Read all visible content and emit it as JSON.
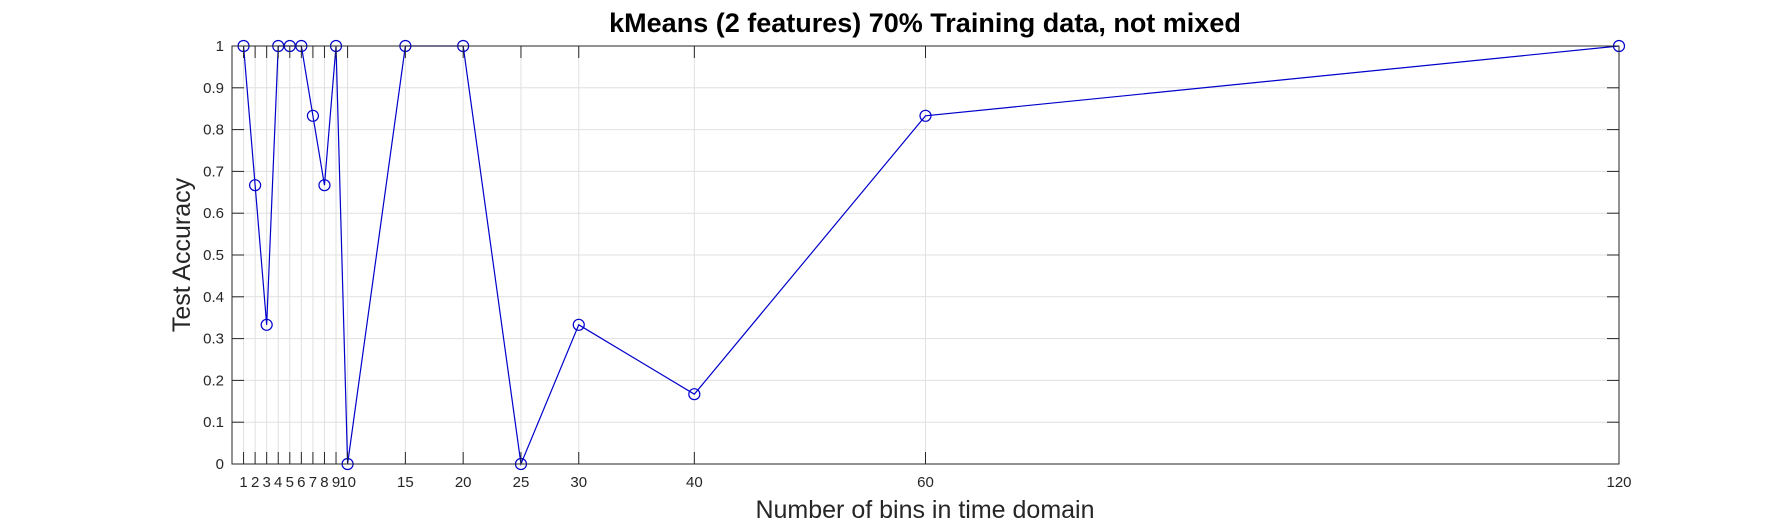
{
  "chart_data": {
    "type": "line",
    "title": "kMeans (2 features) 70% Training data, not mixed",
    "xlabel": "Number of bins in time domain",
    "ylabel": "Test Accuracy",
    "x": [
      1,
      2,
      3,
      4,
      5,
      6,
      7,
      8,
      9,
      10,
      15,
      20,
      25,
      30,
      40,
      60,
      120
    ],
    "series": [
      {
        "values": [
          1,
          0.667,
          0.333,
          1,
          1,
          1,
          0.833,
          0.667,
          1,
          0,
          1,
          1,
          0,
          0.333,
          0.167,
          0.833,
          1
        ]
      }
    ],
    "xlim": [
      0,
      120
    ],
    "ylim": [
      0,
      1
    ],
    "xticks": [
      1,
      2,
      3,
      4,
      5,
      6,
      7,
      8,
      9,
      10,
      15,
      20,
      25,
      30,
      40,
      60,
      120
    ],
    "yticks": [
      0,
      0.1,
      0.2,
      0.3,
      0.4,
      0.5,
      0.6,
      0.7,
      0.8,
      0.9,
      1
    ],
    "grid": true,
    "marker": "circle",
    "line_color": "#0000cc",
    "grid_color": "#e0e0e0"
  }
}
